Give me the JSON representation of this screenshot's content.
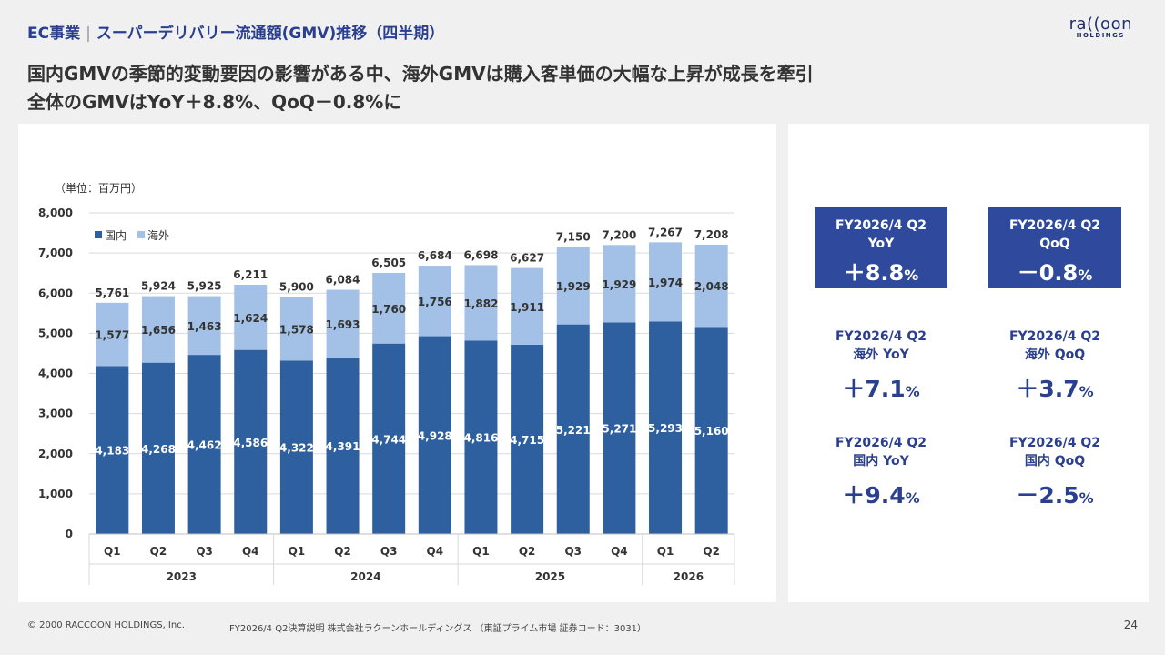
{
  "header": {
    "section": "EC事業",
    "title": "スーパーデリバリー流通額(GMV)推移（四半期）"
  },
  "logo": {
    "main": "ra((oon",
    "sub": "HOLDINGS"
  },
  "headline": {
    "line1": "国内GMVの季節的変動要因の影響がある中、海外GMVは購入客単価の大幅な上昇が成長を牽引",
    "line2": "全体のGMVはYoY＋8.8%、QoQ－0.8%に"
  },
  "chart_data": {
    "type": "bar",
    "stacked": true,
    "unit_label": "（単位：百万円）",
    "categories": [
      "Q1",
      "Q2",
      "Q3",
      "Q4",
      "Q1",
      "Q2",
      "Q3",
      "Q4",
      "Q1",
      "Q2",
      "Q3",
      "Q4",
      "Q1",
      "Q2"
    ],
    "years": [
      {
        "label": "2023",
        "span": 4
      },
      {
        "label": "2024",
        "span": 4
      },
      {
        "label": "2025",
        "span": 4
      },
      {
        "label": "2026",
        "span": 2
      }
    ],
    "series": [
      {
        "name": "国内",
        "color": "#2e5f9e",
        "values": [
          4183,
          4268,
          4462,
          4586,
          4322,
          4391,
          4744,
          4928,
          4816,
          4715,
          5221,
          5271,
          5293,
          5160
        ]
      },
      {
        "name": "海外",
        "color": "#a3c1e6",
        "values": [
          1577,
          1656,
          1463,
          1624,
          1578,
          1693,
          1760,
          1756,
          1882,
          1911,
          1929,
          1929,
          1974,
          2048
        ]
      }
    ],
    "totals": [
      5761,
      5924,
      5925,
      6211,
      5900,
      6084,
      6505,
      6684,
      6698,
      6627,
      7150,
      7200,
      7267,
      7208
    ],
    "ylim": [
      0,
      8000
    ],
    "yticks": [
      0,
      1000,
      2000,
      3000,
      4000,
      5000,
      6000,
      7000,
      8000
    ],
    "legend_position": "top-left"
  },
  "kpis": [
    {
      "line1": "FY2026/4 Q2",
      "line2": "YoY",
      "sign": "＋",
      "value": "8.8",
      "pct": "%"
    },
    {
      "line1": "FY2026/4 Q2",
      "line2": "QoQ",
      "sign": "－",
      "value": "0.8",
      "pct": "%"
    },
    {
      "line1": "FY2026/4 Q2",
      "line2": "海外 YoY",
      "sign": "＋",
      "value": "7.1",
      "pct": "%"
    },
    {
      "line1": "FY2026/4 Q2",
      "line2": "海外 QoQ",
      "sign": "＋",
      "value": "3.7",
      "pct": "%"
    },
    {
      "line1": "FY2026/4 Q2",
      "line2": "国内 YoY",
      "sign": "＋",
      "value": "9.4",
      "pct": "%"
    },
    {
      "line1": "FY2026/4 Q2",
      "line2": "国内 QoQ",
      "sign": "－",
      "value": "2.5",
      "pct": "%"
    }
  ],
  "footer": {
    "copyright": "© 2000 RACCOON HOLDINGS, Inc.",
    "doc": "FY2026/4 Q2決算説明 株式会社ラクーンホールディングス （東証プライム市場 証券コード：3031）",
    "page": "24"
  }
}
